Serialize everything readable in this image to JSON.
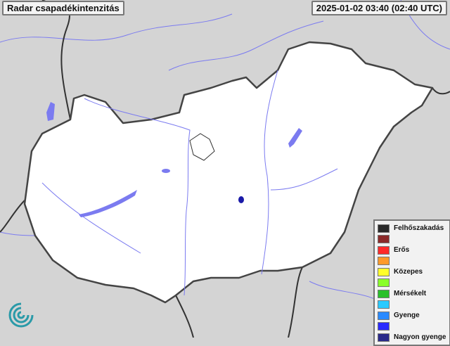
{
  "title": "Radar csapadékintenzitás",
  "timestamp": "2025-01-02 03:40 (02:40 UTC)",
  "colors": {
    "background": "#d4d4d4",
    "country_fill": "#ffffff",
    "border": "#444444",
    "water": "#7b7bf0",
    "echo": "#1a1aa8"
  },
  "legend": [
    {
      "color": "#2a2a2a",
      "label": "Felhőszakadás"
    },
    {
      "color": "#8b2a2a",
      "label": ""
    },
    {
      "color": "#ff2a2a",
      "label": "Erős"
    },
    {
      "color": "#ff9a2a",
      "label": ""
    },
    {
      "color": "#ffff2a",
      "label": "Közepes"
    },
    {
      "color": "#8aff2a",
      "label": ""
    },
    {
      "color": "#2ac02a",
      "label": "Mérsékelt"
    },
    {
      "color": "#2acaff",
      "label": ""
    },
    {
      "color": "#2a8aff",
      "label": "Gyenge"
    },
    {
      "color": "#2a2aff",
      "label": ""
    },
    {
      "color": "#2a2a8a",
      "label": "Nagyon gyenge"
    }
  ],
  "logo_icon": "wave-spiral-logo"
}
